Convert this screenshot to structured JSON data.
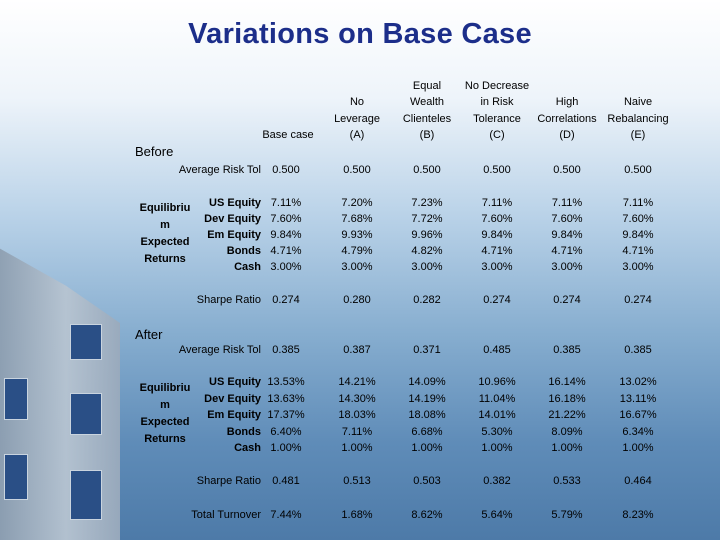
{
  "title": "Variations on Base Case",
  "columns": [
    {
      "lines": [
        "",
        "",
        "Base case"
      ]
    },
    {
      "lines": [
        "No",
        "Leverage",
        "(A)"
      ]
    },
    {
      "lines": [
        "Equal",
        "Wealth",
        "Clienteles",
        "(B)"
      ]
    },
    {
      "lines": [
        "No Decrease",
        "in Risk",
        "Tolerance",
        "(C)"
      ]
    },
    {
      "lines": [
        "High",
        "Correlations",
        "(D)"
      ]
    },
    {
      "lines": [
        "Naive",
        "Rebalancing",
        "(E)"
      ]
    }
  ],
  "before": {
    "label": "Before",
    "avg_risk": {
      "label": "Average Risk Tol",
      "values": [
        "0.500",
        "0.500",
        "0.500",
        "0.500",
        "0.500",
        "0.500"
      ]
    },
    "eq_label": [
      "Equilibriu",
      "m",
      "Expected",
      "Returns"
    ],
    "assets": [
      {
        "label": "US Equity",
        "values": [
          "7.11%",
          "7.20%",
          "7.23%",
          "7.11%",
          "7.11%",
          "7.11%"
        ]
      },
      {
        "label": "Dev Equity",
        "values": [
          "7.60%",
          "7.68%",
          "7.72%",
          "7.60%",
          "7.60%",
          "7.60%"
        ]
      },
      {
        "label": "Em Equity",
        "values": [
          "9.84%",
          "9.93%",
          "9.96%",
          "9.84%",
          "9.84%",
          "9.84%"
        ]
      },
      {
        "label": "Bonds",
        "values": [
          "4.71%",
          "4.79%",
          "4.82%",
          "4.71%",
          "4.71%",
          "4.71%"
        ]
      },
      {
        "label": "Cash",
        "values": [
          "3.00%",
          "3.00%",
          "3.00%",
          "3.00%",
          "3.00%",
          "3.00%"
        ]
      }
    ],
    "sharpe": {
      "label": "Sharpe Ratio",
      "values": [
        "0.274",
        "0.280",
        "0.282",
        "0.274",
        "0.274",
        "0.274"
      ]
    }
  },
  "after": {
    "label": "After",
    "avg_risk": {
      "label": "Average Risk Tol",
      "values": [
        "0.385",
        "0.387",
        "0.371",
        "0.485",
        "0.385",
        "0.385"
      ]
    },
    "eq_label": [
      "Equilibriu",
      "m",
      "Expected",
      "Returns"
    ],
    "assets": [
      {
        "label": "US Equity",
        "values": [
          "13.53%",
          "14.21%",
          "14.09%",
          "10.96%",
          "16.14%",
          "13.02%"
        ]
      },
      {
        "label": "Dev Equity",
        "values": [
          "13.63%",
          "14.30%",
          "14.19%",
          "11.04%",
          "16.18%",
          "13.11%"
        ]
      },
      {
        "label": "Em Equity",
        "values": [
          "17.37%",
          "18.03%",
          "18.08%",
          "14.01%",
          "21.22%",
          "16.67%"
        ]
      },
      {
        "label": "Bonds",
        "values": [
          "6.40%",
          "7.11%",
          "6.68%",
          "5.30%",
          "8.09%",
          "6.34%"
        ]
      },
      {
        "label": "Cash",
        "values": [
          "1.00%",
          "1.00%",
          "1.00%",
          "1.00%",
          "1.00%",
          "1.00%"
        ]
      }
    ],
    "sharpe": {
      "label": "Sharpe Ratio",
      "values": [
        "0.481",
        "0.513",
        "0.503",
        "0.382",
        "0.533",
        "0.464"
      ]
    },
    "turnover": {
      "label": "Total Turnover",
      "values": [
        "7.44%",
        "1.68%",
        "8.62%",
        "5.64%",
        "5.79%",
        "8.23%"
      ]
    }
  }
}
